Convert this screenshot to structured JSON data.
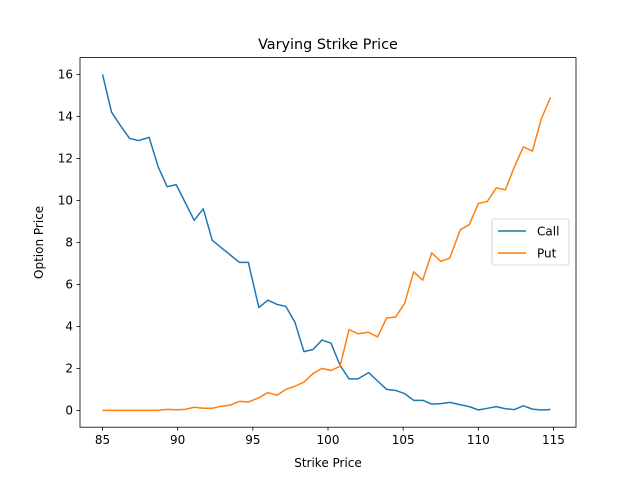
{
  "chart_data": {
    "type": "line",
    "title": "Varying Strike Price",
    "xlabel": "Strike Price",
    "ylabel": "Option Price",
    "xlim": [
      83.5,
      116.5
    ],
    "ylim": [
      -0.8,
      16.8
    ],
    "xticks": [
      85,
      90,
      95,
      100,
      105,
      110,
      115
    ],
    "xtick_labels": [
      "85",
      "90",
      "95",
      "100",
      "105",
      "110",
      "115"
    ],
    "yticks": [
      0,
      2,
      4,
      6,
      8,
      10,
      12,
      14,
      16
    ],
    "ytick_labels": [
      "0",
      "2",
      "4",
      "6",
      "8",
      "10",
      "12",
      "14",
      "16"
    ],
    "grid": false,
    "legend_position": "center-right",
    "x": [
      85,
      85.6,
      86.2,
      86.8,
      87.4,
      88.1,
      88.7,
      89.3,
      89.9,
      90.5,
      91.1,
      91.7,
      92.3,
      92.9,
      93.5,
      94.1,
      94.7,
      95.4,
      96,
      96.6,
      97.2,
      97.8,
      98.4,
      99,
      99.6,
      100.2,
      100.8,
      101.4,
      102,
      102.7,
      103.3,
      103.9,
      104.5,
      105.1,
      105.7,
      106.3,
      106.9,
      107.5,
      108.1,
      108.8,
      109.4,
      110,
      110.6,
      111.2,
      111.8,
      112.4,
      113,
      113.6,
      114.2,
      114.8
    ],
    "series": [
      {
        "name": "Call",
        "color": "#1f77b4",
        "values": [
          16.0,
          14.2,
          13.55,
          12.95,
          12.85,
          13.0,
          11.6,
          10.65,
          10.75,
          9.9,
          9.05,
          9.6,
          8.1,
          7.75,
          7.4,
          7.05,
          7.05,
          4.9,
          5.25,
          5.05,
          4.95,
          4.2,
          2.8,
          2.9,
          3.35,
          3.2,
          2.15,
          1.5,
          1.5,
          1.8,
          1.4,
          1.0,
          0.95,
          0.8,
          0.48,
          0.48,
          0.3,
          0.32,
          0.38,
          0.27,
          0.18,
          0.02,
          0.1,
          0.18,
          0.08,
          0.04,
          0.22,
          0.06,
          0.02,
          0.04
        ]
      },
      {
        "name": "Put",
        "color": "#ff7f0e",
        "values": [
          0.0,
          0.0,
          0.0,
          0.0,
          0.0,
          0.0,
          0.0,
          0.05,
          0.03,
          0.05,
          0.15,
          0.1,
          0.1,
          0.2,
          0.25,
          0.43,
          0.4,
          0.6,
          0.85,
          0.72,
          1.0,
          1.15,
          1.35,
          1.75,
          2.0,
          1.9,
          2.1,
          3.85,
          3.65,
          3.72,
          3.5,
          4.4,
          4.45,
          5.1,
          6.6,
          6.2,
          7.5,
          7.1,
          7.25,
          8.6,
          8.85,
          9.85,
          9.95,
          10.6,
          10.5,
          11.6,
          12.55,
          12.35,
          13.9,
          14.9
        ]
      }
    ]
  }
}
